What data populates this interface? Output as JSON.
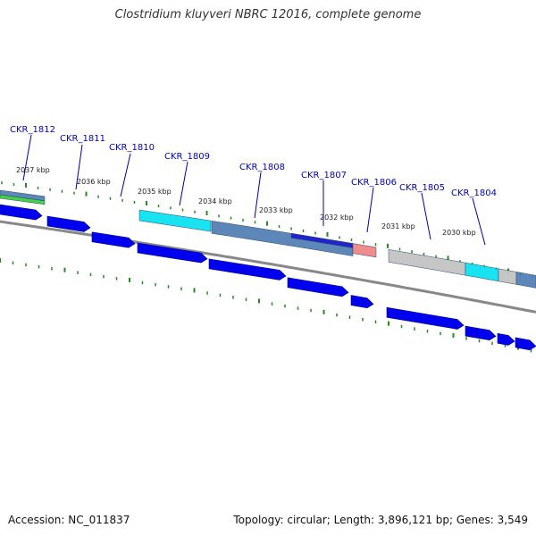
{
  "title": "Clostridium kluyveri NBRC 12016, complete genome",
  "footer": {
    "accession": "Accession: NC_011837",
    "summary": "Topology: circular; Length: 3,896,121 bp; Genes: 3,549"
  },
  "colors": {
    "gene_label": "#0000cc",
    "cds_arrow": "#0000ee",
    "tick": "#228b22",
    "backbone": "#888888",
    "feature_steelblue": "#4a7ab0",
    "feature_cyan": "#00e0f0",
    "feature_grey": "#c0c0c0",
    "feature_salmon": "#f08080",
    "feature_green": "#33cc33",
    "feature_darkblue": "#1a1acc"
  },
  "kbp_labels": [
    "2037 kbp",
    "2036 kbp",
    "2035 kbp",
    "2034 kbp",
    "2033 kbp",
    "2032 kbp",
    "2031 kbp",
    "2030 kbp"
  ],
  "genes": [
    "CKR_1812",
    "CKR_1811",
    "CKR_1810",
    "CKR_1809",
    "CKR_1808",
    "CKR_1807",
    "CKR_1806",
    "CKR_1805",
    "CKR_1804"
  ]
}
